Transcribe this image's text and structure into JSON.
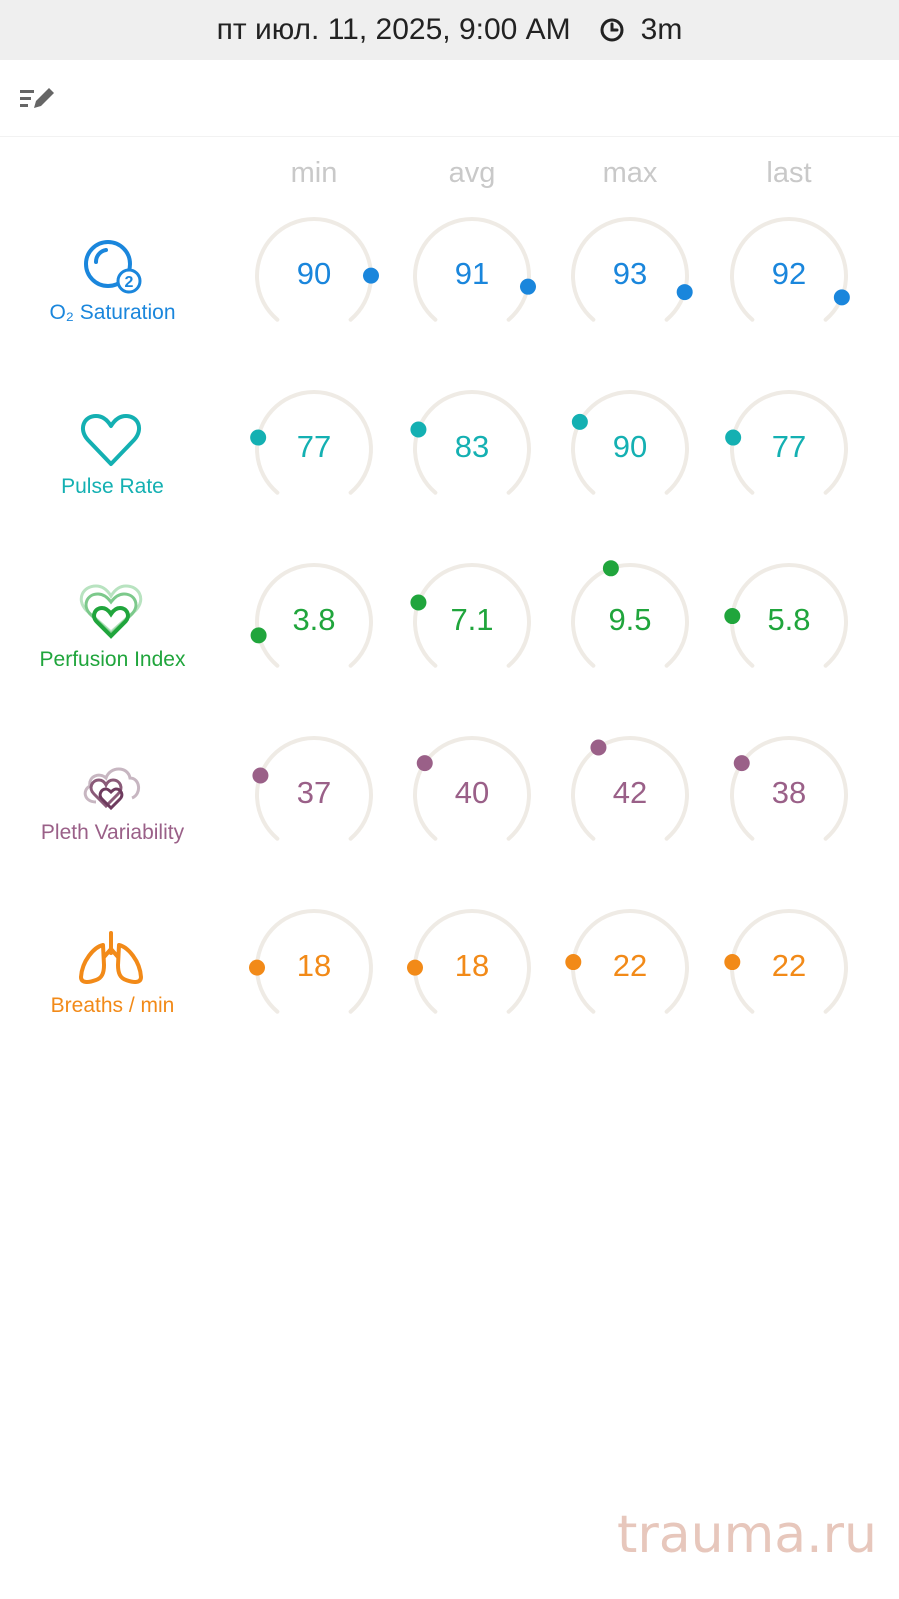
{
  "header": {
    "datetime": "пт июл. 11, 2025, 9:00 AM",
    "duration": "3m"
  },
  "columns": [
    "min",
    "avg",
    "max",
    "last"
  ],
  "rows": [
    {
      "id": "spo2",
      "label": "O₂ Saturation",
      "color": "#1a86dc",
      "icon": "o2-icon",
      "values": [
        "90",
        "91",
        "93",
        "92"
      ],
      "dots": [
        0.82,
        0.86,
        0.88,
        0.9
      ]
    },
    {
      "id": "pr",
      "label": "Pulse Rate",
      "color": "#14b0b2",
      "icon": "heart-icon",
      "values": [
        "77",
        "83",
        "90",
        "77"
      ],
      "dots": [
        0.22,
        0.25,
        0.28,
        0.22
      ]
    },
    {
      "id": "pi",
      "label": "Perfusion Index",
      "color": "#20a53c",
      "icon": "layered-heart-icon",
      "values": [
        "3.8",
        "7.1",
        "9.5",
        "5.8"
      ],
      "dots": [
        0.13,
        0.25,
        0.43,
        0.2
      ]
    },
    {
      "id": "pvi",
      "label": "Pleth Variability",
      "color": "#9a6088",
      "icon": "hearts-cloud-icon",
      "values": [
        "37",
        "40",
        "42",
        "38"
      ],
      "dots": [
        0.25,
        0.3,
        0.38,
        0.3
      ]
    },
    {
      "id": "rr",
      "label": "Breaths / min",
      "color": "#f28a18",
      "icon": "lungs-icon",
      "values": [
        "18",
        "18",
        "22",
        "22"
      ],
      "dots": [
        0.18,
        0.18,
        0.2,
        0.2
      ]
    }
  ],
  "watermark": "trauma.ru"
}
